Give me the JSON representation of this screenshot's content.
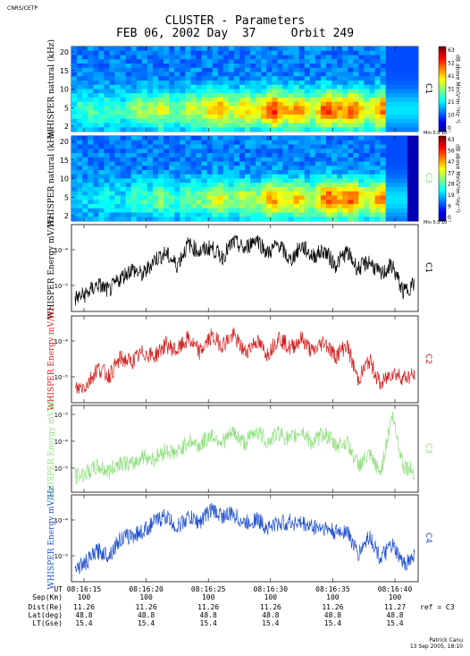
{
  "header": {
    "org": "CNRS/CETP",
    "title_line1": "CLUSTER - Parameters",
    "title_line2": "FEB 06, 2002 Day  37     Orbit 249",
    "signature_line1": "Patrick Canu",
    "signature_line2": "13 Sep 2005, 18:10"
  },
  "chart_data": [
    {
      "type": "heatmap",
      "satellite": "C1",
      "ylabel": "WHISPER natural (kHz)",
      "yticks": [
        "20",
        "15",
        "10",
        "5",
        "2"
      ],
      "colorbar_ticks": [
        "63",
        "52",
        "41",
        "31",
        "21",
        "10",
        "0"
      ],
      "colorbar_label": "dB above Min(V²m⁻²Hz⁻¹)",
      "colorbar_min": "Min 5.0 10⁻⁷"
    },
    {
      "type": "heatmap",
      "satellite": "C3",
      "ylabel": "WHISPER natural (kHz)",
      "yticks": [
        "20",
        "15",
        "10",
        "5",
        "2"
      ],
      "colorbar_ticks": [
        "63",
        "56",
        "47",
        "37",
        "28",
        "19",
        "9",
        "0"
      ],
      "colorbar_label": "dB above Min(V²m⁻²Hz⁻¹)",
      "colorbar_min": "Min 5.0 10⁻⁷"
    },
    {
      "type": "line",
      "satellite": "C1",
      "color": "#000000",
      "ylabel": "WHISPER Energy mV/Hz",
      "yticks": [
        "10⁻⁴",
        "10⁻⁵"
      ],
      "envelope": [
        0.12,
        0.18,
        0.3,
        0.22,
        0.38,
        0.5,
        0.42,
        0.62,
        0.7,
        0.55,
        0.82,
        0.72,
        0.78,
        0.65,
        0.85,
        0.75,
        0.9,
        0.7,
        0.82,
        0.6,
        0.8,
        0.66,
        0.74,
        0.55,
        0.72,
        0.5,
        0.6,
        0.42,
        0.55,
        0.2,
        0.32
      ]
    },
    {
      "type": "line",
      "satellite": "C2",
      "color": "#d42020",
      "ylabel": "WHISPER Energy mV/Hz",
      "yticks": [
        "10⁻⁴",
        "10⁻⁵"
      ],
      "envelope": [
        0.12,
        0.18,
        0.4,
        0.3,
        0.52,
        0.48,
        0.6,
        0.55,
        0.7,
        0.62,
        0.78,
        0.6,
        0.8,
        0.7,
        0.82,
        0.6,
        0.75,
        0.58,
        0.8,
        0.65,
        0.78,
        0.6,
        0.75,
        0.55,
        0.7,
        0.25,
        0.5,
        0.18,
        0.35,
        0.28,
        0.3
      ]
    },
    {
      "type": "line",
      "satellite": "C3",
      "color": "#90e080",
      "ylabel": "WHISPER Energy mV/Hz",
      "yticks": [
        "10⁻⁵",
        "10⁻⁴",
        "10⁻⁵"
      ],
      "envelope": [
        0.15,
        0.2,
        0.28,
        0.22,
        0.35,
        0.3,
        0.42,
        0.38,
        0.5,
        0.45,
        0.62,
        0.55,
        0.7,
        0.6,
        0.72,
        0.58,
        0.75,
        0.6,
        0.72,
        0.62,
        0.75,
        0.58,
        0.72,
        0.55,
        0.6,
        0.3,
        0.42,
        0.2,
        0.95,
        0.3,
        0.22
      ]
    },
    {
      "type": "line",
      "satellite": "C4",
      "color": "#2050d0",
      "ylabel": "WHISPER Energy mV/Hz",
      "yticks": [
        "10⁻⁴",
        "10⁻⁵"
      ],
      "envelope": [
        0.12,
        0.2,
        0.35,
        0.3,
        0.5,
        0.55,
        0.6,
        0.72,
        0.8,
        0.65,
        0.78,
        0.72,
        0.88,
        0.8,
        0.82,
        0.7,
        0.76,
        0.65,
        0.7,
        0.72,
        0.7,
        0.66,
        0.65,
        0.58,
        0.62,
        0.3,
        0.55,
        0.25,
        0.42,
        0.18,
        0.28
      ]
    }
  ],
  "footer": {
    "rows": [
      {
        "label": "UT",
        "values": [
          "08:16:15",
          "08:16:20",
          "08:16:25",
          "08:16:30",
          "08:16:35",
          "08:16:40"
        ]
      },
      {
        "label": "Sep(Km)",
        "values": [
          "100",
          "100",
          "100",
          "100",
          "100",
          "100"
        ]
      },
      {
        "label": "Dist(Re)",
        "values": [
          "11.26",
          "11.26",
          "11.26",
          "11.26",
          "11.26",
          "11.27"
        ]
      },
      {
        "label": "Lat(deg)",
        "values": [
          "48.8",
          "48.8",
          "48.8",
          "48.8",
          "48.8",
          "48.8"
        ]
      },
      {
        "label": "LT(Gse)",
        "values": [
          "15.4",
          "15.4",
          "15.4",
          "15.4",
          "15.4",
          "15.4"
        ]
      }
    ],
    "ref": "ref = C3"
  }
}
